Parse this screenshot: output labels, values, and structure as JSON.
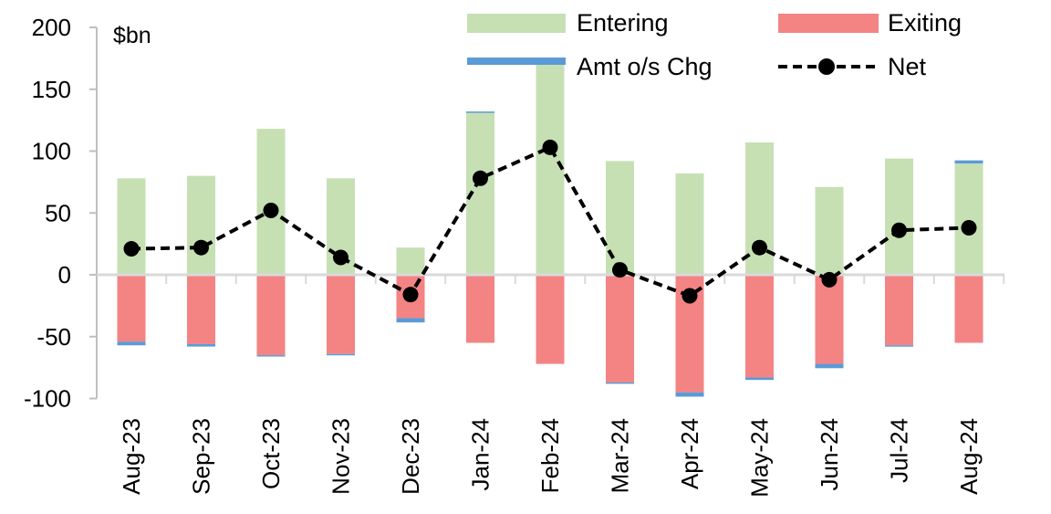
{
  "chart_data": {
    "type": "bar",
    "stacked": true,
    "unit_label": "$bn",
    "xlabel": "",
    "ylabel": "",
    "ylim": [
      -100,
      200
    ],
    "yticks": [
      200,
      150,
      100,
      50,
      0,
      -50,
      -100
    ],
    "grid": false,
    "legend_position": "top",
    "categories": [
      "Aug-23",
      "Sep-23",
      "Oct-23",
      "Nov-23",
      "Dec-23",
      "Jan-24",
      "Feb-24",
      "Mar-24",
      "Apr-24",
      "May-24",
      "Jun-24",
      "Jul-24",
      "Aug-24"
    ],
    "series": [
      {
        "name": "Entering",
        "kind": "bar",
        "color": "#c6e0b4",
        "values": [
          78,
          80,
          118,
          78,
          22,
          131,
          175,
          92,
          82,
          107,
          71,
          94,
          90
        ]
      },
      {
        "name": "Exiting",
        "kind": "bar",
        "color": "#f48383",
        "values": [
          -54,
          -56,
          -65,
          -64,
          -35,
          -55,
          -72,
          -87,
          -95,
          -83,
          -72,
          -57,
          -55
        ]
      },
      {
        "name": "Amt o/s Chg",
        "kind": "bar",
        "color": "#5b9bd5",
        "values": [
          -3,
          -2,
          -0.5,
          -0.5,
          -3.5,
          1,
          0,
          -1,
          -3.5,
          -2,
          -3.5,
          -1,
          2.5
        ]
      },
      {
        "name": "Net",
        "kind": "line",
        "color": "#000000",
        "values": [
          21,
          22,
          52,
          14,
          -16,
          78,
          103,
          4,
          -17,
          22,
          -4,
          36,
          38
        ]
      }
    ]
  }
}
